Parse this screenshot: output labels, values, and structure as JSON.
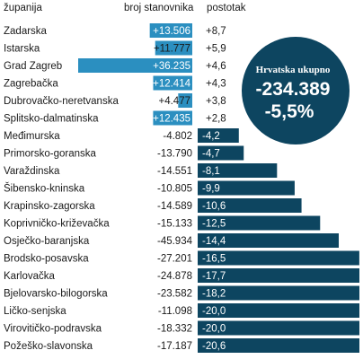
{
  "chart_data": {
    "type": "bar",
    "headers": {
      "region": "županija",
      "population_change": "broj stanovnika",
      "percent": "postotak"
    },
    "colors": {
      "positive_bar": "#2b8fc0",
      "negative_bar": "#0d4560",
      "text": "#1a1a1a"
    },
    "rows": [
      {
        "name": "Zadarska",
        "change": 13506,
        "change_label": "+13.506",
        "pct": 8.7,
        "pct_label": "+8,7"
      },
      {
        "name": "Istarska",
        "change": 11777,
        "change_label": "+11.777",
        "pct": 5.9,
        "pct_label": "+5,9"
      },
      {
        "name": "Grad Zagreb",
        "change": 36235,
        "change_label": "+36.235",
        "pct": 4.6,
        "pct_label": "+4,6"
      },
      {
        "name": "Zagrebačka",
        "change": 12414,
        "change_label": "+12.414",
        "pct": 4.3,
        "pct_label": "+4,3"
      },
      {
        "name": "Dubrovačko-neretvanska",
        "change": 4477,
        "change_label": "+4.477",
        "pct": 3.8,
        "pct_label": "+3,8"
      },
      {
        "name": "Splitsko-dalmatinska",
        "change": 12435,
        "change_label": "+12.435",
        "pct": 2.8,
        "pct_label": "+2,8"
      },
      {
        "name": "Međimurska",
        "change": -4802,
        "change_label": "-4.802",
        "pct": -4.2,
        "pct_label": "-4,2"
      },
      {
        "name": "Primorsko-goranska",
        "change": -13790,
        "change_label": "-13.790",
        "pct": -4.7,
        "pct_label": "-4,7"
      },
      {
        "name": "Varaždinska",
        "change": -14551,
        "change_label": "-14.551",
        "pct": -8.1,
        "pct_label": "-8,1"
      },
      {
        "name": "Šibensko-kninska",
        "change": -10805,
        "change_label": "-10.805",
        "pct": -9.9,
        "pct_label": "-9,9"
      },
      {
        "name": "Krapinsko-zagorska",
        "change": -14589,
        "change_label": "-14.589",
        "pct": -10.6,
        "pct_label": "-10,6"
      },
      {
        "name": "Koprivničko-križevačka",
        "change": -15133,
        "change_label": "-15.133",
        "pct": -12.5,
        "pct_label": "-12,5"
      },
      {
        "name": "Osječko-baranjska",
        "change": -45934,
        "change_label": "-45.934",
        "pct": -14.4,
        "pct_label": "-14,4"
      },
      {
        "name": "Brodsko-posavska",
        "change": -27201,
        "change_label": "-27.201",
        "pct": -16.5,
        "pct_label": "-16,5"
      },
      {
        "name": "Karlovačka",
        "change": -24878,
        "change_label": "-24.878",
        "pct": -17.7,
        "pct_label": "-17,7"
      },
      {
        "name": "Bjelovarsko-bilogorska",
        "change": -23582,
        "change_label": "-23.582",
        "pct": -18.2,
        "pct_label": "-18,2"
      },
      {
        "name": "Ličko-senjska",
        "change": -11098,
        "change_label": "-11.098",
        "pct": -20.0,
        "pct_label": "-20,0"
      },
      {
        "name": "Virovitičko-podravska",
        "change": -18332,
        "change_label": "-18.332",
        "pct": -20.0,
        "pct_label": "-20,0"
      },
      {
        "name": "Požeško-slavonska",
        "change": -17187,
        "change_label": "-17.187",
        "pct": -20.6,
        "pct_label": "-20,6"
      }
    ],
    "total": {
      "title": "Hrvatska ukupno",
      "change_label": "-234.389",
      "pct_label": "-5,5%"
    }
  }
}
